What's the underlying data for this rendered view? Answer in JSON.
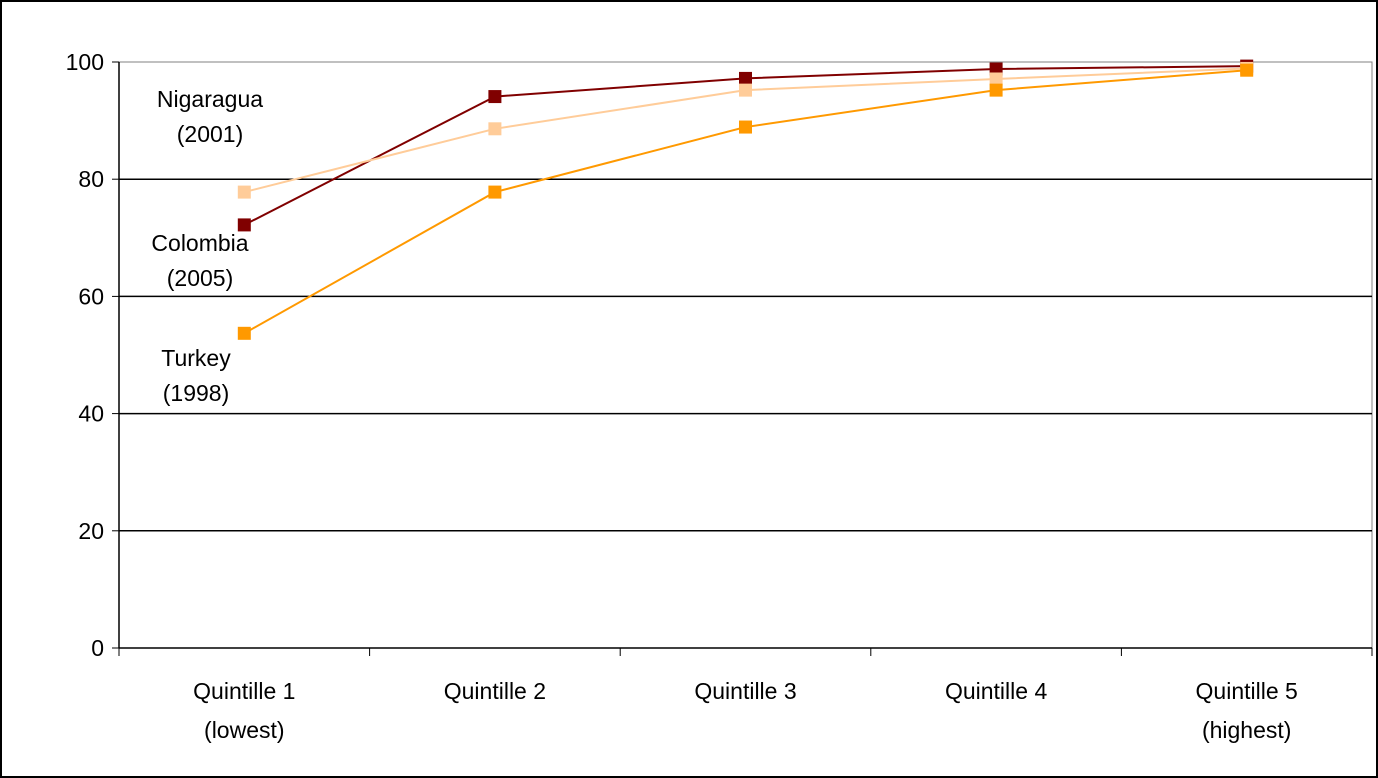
{
  "chart_data": {
    "type": "line",
    "title": "",
    "xlabel": "",
    "ylabel": "",
    "categories": [
      [
        "Quintille 1",
        "(lowest)"
      ],
      [
        "Quintille 2"
      ],
      [
        "Quintille 3"
      ],
      [
        "Quintille 4"
      ],
      [
        "Quintille 5",
        "(highest)"
      ]
    ],
    "ylim": [
      0,
      100
    ],
    "yticks": [
      "0",
      "20",
      "40",
      "60",
      "80",
      "100"
    ],
    "grid": true,
    "legend": "none",
    "series": [
      {
        "name_lines": [
          "Nigaragua",
          "(2001)"
        ],
        "color": "#800000",
        "values": [
          72.2,
          94.1,
          97.2,
          98.8,
          99.3
        ]
      },
      {
        "name_lines": [
          "Colombia",
          "(2005)"
        ],
        "color": "#ffcc99",
        "values": [
          77.8,
          88.6,
          95.2,
          97.1,
          98.9
        ]
      },
      {
        "name_lines": [
          "Turkey",
          "(1998)"
        ],
        "color": "#ff9900",
        "values": [
          53.7,
          77.8,
          88.9,
          95.2,
          98.6
        ]
      }
    ]
  }
}
